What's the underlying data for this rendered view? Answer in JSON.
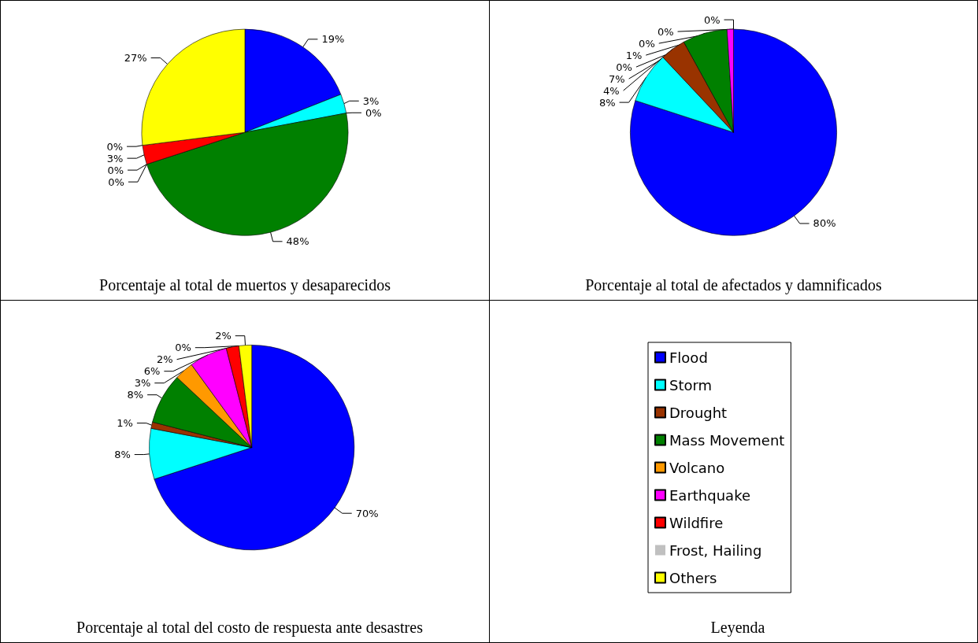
{
  "chart_data": [
    {
      "type": "pie",
      "title": "Porcentaje al total de muertos y desaparecidos",
      "categories": [
        null,
        null,
        null,
        null,
        null,
        null,
        null,
        null,
        null
      ],
      "values": [
        19,
        3,
        0,
        48,
        0,
        0,
        3,
        0,
        27
      ],
      "value_labels": [
        "19%",
        "3%",
        "0%",
        "48%",
        "0%",
        "0%",
        "3%",
        "0%",
        "27%"
      ],
      "colors": [
        "#0000ff",
        "#00ffff",
        "#993300",
        "#008000",
        "#ff9900",
        "#ff00ff",
        "#ff0000",
        "#c0c0c0",
        "#ffff00"
      ],
      "legend": false
    },
    {
      "type": "pie",
      "title": "Porcentaje al total de afectados y damnificados",
      "categories": [
        null,
        null,
        null,
        null,
        null,
        null,
        null,
        null,
        null
      ],
      "values": [
        80,
        8,
        4,
        7,
        0,
        1,
        0,
        0,
        0
      ],
      "value_labels": [
        "80%",
        "8%",
        "4%",
        "7%",
        "0%",
        "1%",
        "0%",
        "0%",
        "0%"
      ],
      "colors": [
        "#0000ff",
        "#00ffff",
        "#993300",
        "#008000",
        "#ff9900",
        "#ff00ff",
        "#ff0000",
        "#c0c0c0",
        "#ffff00"
      ],
      "legend": false
    },
    {
      "type": "pie",
      "title": "Porcentaje al total del costo de respuesta ante desastres",
      "legend_title": "Leyenda",
      "categories": [
        "Flood",
        "Storm",
        "Drought",
        "Mass Movement",
        "Volcano",
        "Earthquake",
        "Wildfire",
        "Frost, Hailing",
        "Others"
      ],
      "values": [
        70,
        8,
        1,
        8,
        3,
        6,
        2,
        0,
        2
      ],
      "value_labels": [
        "70%",
        "8%",
        "1%",
        "8%",
        "3%",
        "6%",
        "2%",
        "0%",
        "2%"
      ],
      "colors": [
        "#0000ff",
        "#00ffff",
        "#993300",
        "#008000",
        "#ff9900",
        "#ff00ff",
        "#ff0000",
        "#c0c0c0",
        "#ffff00"
      ],
      "legend": "right"
    }
  ]
}
